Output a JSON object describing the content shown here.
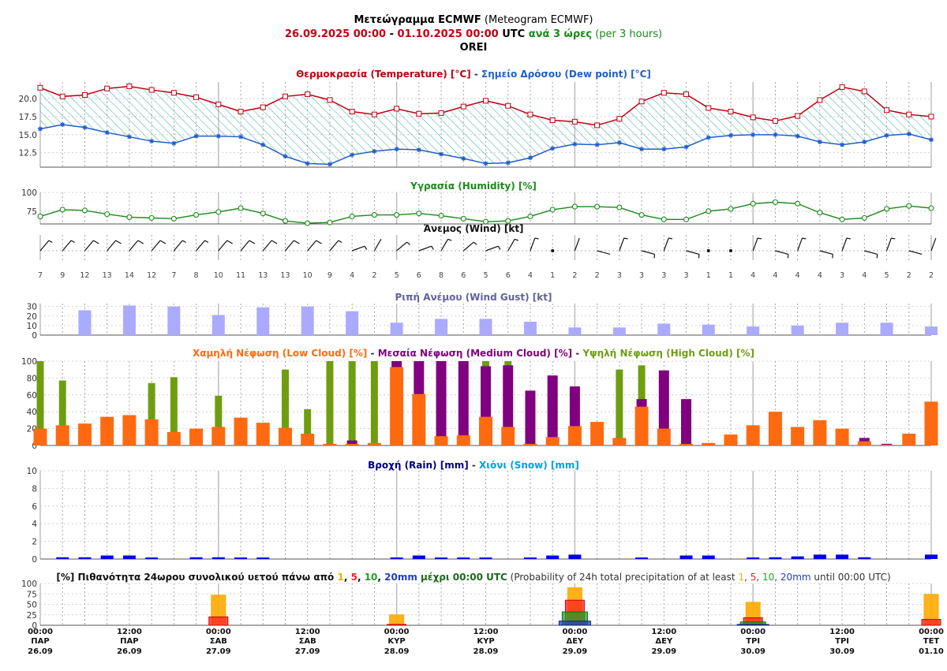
{
  "header": {
    "title_bold": "Μετεώγραμμα ECMWF",
    "title_en": " (Meteogram ECMWF)",
    "range_start": "26.09.2025 00:00",
    "range_sep": " - ",
    "range_end": "01.10.2025 00:00",
    "utc": " UTC ",
    "step_gr": "ανά 3 ώρες",
    "step_en": " (per 3 hours)",
    "location": "OREI"
  },
  "colors": {
    "temperature": "#c00010",
    "dewpoint": "#1f5fc8",
    "humidity": "#1a8a1a",
    "gust": "#aaaaff",
    "low_cloud": "#ff6a10",
    "medium_cloud": "#800080",
    "high_cloud": "#6e9e10",
    "rain": "#0000ee",
    "snow": "#00a0e0",
    "prob_1": "#ffaa00",
    "prob_5": "#ff2020",
    "prob_10": "#20a020",
    "prob_20": "#2040c0"
  },
  "chart_data": [
    {
      "type": "line",
      "title": "",
      "title_parts": [
        "Θερμοκρασία (Temperature) [°C]",
        " - ",
        "Σημείο Δρόσου (Dew point) [°C]"
      ],
      "ylim": [
        10.5,
        22.3
      ],
      "yticks": [
        "12.5",
        "15.0",
        "17.5",
        "20.0"
      ],
      "ytick_values": [
        12.5,
        15.0,
        17.5,
        20.0
      ],
      "series": [
        {
          "name": "Temperature",
          "values": [
            21.5,
            20.3,
            20.5,
            21.4,
            21.7,
            21.2,
            20.8,
            20.2,
            19.2,
            18.2,
            18.8,
            20.3,
            20.6,
            19.8,
            18.2,
            17.8,
            18.6,
            17.9,
            18.0,
            18.9,
            19.7,
            19.0,
            17.8,
            17.0,
            16.8,
            16.3,
            17.2,
            19.6,
            20.8,
            20.6,
            18.7,
            18.2,
            17.4,
            16.9,
            17.6,
            19.8,
            21.6,
            21.0,
            18.4,
            17.8,
            17.5
          ]
        },
        {
          "name": "Dew point",
          "values": [
            15.8,
            16.4,
            16.0,
            15.3,
            14.7,
            14.1,
            13.8,
            14.8,
            14.8,
            14.7,
            13.6,
            12.0,
            11.0,
            10.9,
            12.2,
            12.7,
            13.0,
            12.9,
            12.3,
            11.7,
            11.0,
            11.1,
            11.8,
            13.1,
            13.7,
            13.6,
            13.9,
            13.0,
            13.0,
            13.3,
            14.6,
            14.9,
            15.0,
            15.0,
            14.8,
            14.0,
            13.6,
            14.0,
            14.9,
            15.1,
            14.3
          ]
        }
      ]
    },
    {
      "type": "line",
      "title": "Υγρασία (Humidity) [%]",
      "ylim": [
        58,
        100
      ],
      "yticks": [
        "75",
        "100"
      ],
      "ytick_values": [
        75,
        100
      ],
      "series": [
        {
          "name": "Humidity",
          "values": [
            68,
            77,
            76,
            71,
            67,
            66,
            65,
            70,
            74,
            79,
            72,
            62,
            59,
            60,
            68,
            70,
            70,
            72,
            69,
            65,
            61,
            62,
            68,
            77,
            81,
            81,
            80,
            70,
            64,
            64,
            75,
            78,
            85,
            87,
            85,
            73,
            64,
            66,
            78,
            82,
            79
          ]
        }
      ]
    },
    {
      "type": "wind",
      "title": "Άνεμος (Wind) [kt]",
      "speeds": [
        "7",
        "9",
        "12",
        "13",
        "14",
        "12",
        "7",
        "8",
        "10",
        "11",
        "13",
        "13",
        "10",
        "9",
        "4",
        "2",
        "5",
        "6",
        "8",
        "6",
        "5",
        "6",
        "4",
        "1",
        "2",
        "2",
        "3",
        "3",
        "3",
        "3",
        "1",
        "1",
        "4",
        "4",
        "4",
        "4",
        "3",
        "4",
        "5",
        "2",
        "2"
      ]
    },
    {
      "type": "bar",
      "title": "Ριπή Ανέμου (Wind Gust) [kt]",
      "ylim": [
        0,
        33
      ],
      "yticks": [
        "0",
        "10",
        "20",
        "30"
      ],
      "ytick_values": [
        0,
        10,
        20,
        30
      ],
      "series": [
        {
          "name": "Wind Gust",
          "values": [
            26,
            31,
            30,
            21,
            29,
            30,
            25,
            13,
            17,
            17,
            14,
            8,
            8,
            12,
            11,
            9,
            10,
            13,
            13,
            9
          ]
        }
      ]
    },
    {
      "type": "bar",
      "title": "",
      "title_parts": [
        "Χαμηλή Νέφωση (Low Cloud) [%]",
        " - ",
        "Μεσαία Νέφωση (Medium Cloud) [%]",
        " - ",
        "Υψηλή Νέφωση (High Cloud) [%]"
      ],
      "ylim": [
        0,
        100
      ],
      "yticks": [
        "0",
        "20",
        "40",
        "60",
        "80",
        "100"
      ],
      "ytick_values": [
        0,
        20,
        40,
        60,
        80,
        100
      ],
      "series": [
        {
          "name": "Low Cloud",
          "values": [
            20,
            24,
            26,
            34,
            36,
            31,
            16,
            20,
            22,
            33,
            27,
            21,
            14,
            2,
            2,
            3,
            93,
            61,
            11,
            12,
            34,
            22,
            2,
            10,
            23,
            28,
            9,
            46,
            20,
            2,
            3,
            13,
            24,
            40,
            22,
            30,
            20,
            5,
            1,
            14,
            52
          ]
        },
        {
          "name": "Medium Cloud",
          "values": [
            0,
            0,
            0,
            0,
            0,
            0,
            0,
            0,
            0,
            0,
            0,
            0,
            0,
            0,
            6,
            0,
            100,
            100,
            100,
            100,
            94,
            95,
            65,
            83,
            70,
            0,
            0,
            55,
            89,
            55,
            0,
            0,
            0,
            0,
            0,
            0,
            0,
            9,
            2,
            0,
            0
          ]
        },
        {
          "name": "High Cloud",
          "values": [
            100,
            77,
            0,
            0,
            0,
            74,
            81,
            0,
            59,
            0,
            0,
            90,
            43,
            100,
            100,
            100,
            0,
            0,
            0,
            0,
            100,
            100,
            0,
            0,
            0,
            0,
            90,
            95,
            0,
            0,
            0,
            0,
            0,
            0,
            0,
            0,
            0,
            0,
            0,
            0,
            0
          ]
        }
      ]
    },
    {
      "type": "bar",
      "title": "",
      "title_parts": [
        "Βροχή (Rain) [mm]",
        " - ",
        "Χιόνι (Snow) [mm]"
      ],
      "ylim": [
        0,
        10
      ],
      "yticks": [
        "0",
        "2",
        "4",
        "6",
        "8",
        "10"
      ],
      "ytick_values": [
        0,
        2,
        4,
        6,
        8,
        10
      ],
      "series": [
        {
          "name": "Rain",
          "values": [
            0,
            0.2,
            0.2,
            0.4,
            0.4,
            0.1,
            0,
            0.2,
            0.2,
            0.1,
            0.1,
            0,
            0,
            0,
            0,
            0,
            0.1,
            0.4,
            0.1,
            0.1,
            0.1,
            0,
            0.1,
            0.4,
            0.5,
            0,
            0,
            0.1,
            0,
            0.4,
            0.4,
            0,
            0.1,
            0.2,
            0.3,
            0.5,
            0.5,
            0.2,
            0,
            0,
            0.5
          ]
        },
        {
          "name": "Snow",
          "values": [
            0,
            0,
            0,
            0,
            0,
            0,
            0,
            0,
            0,
            0,
            0,
            0,
            0,
            0,
            0,
            0,
            0,
            0,
            0,
            0,
            0,
            0,
            0,
            0,
            0,
            0,
            0,
            0,
            0,
            0,
            0,
            0,
            0,
            0,
            0,
            0,
            0,
            0,
            0,
            0,
            0
          ]
        }
      ]
    },
    {
      "type": "bar",
      "title": "",
      "title_parts": [
        "[%] Πιθανότητα 24ωρου συνολικού υετού πάνω από ",
        "1",
        ", ",
        "5",
        ", ",
        "10",
        ", ",
        "20mm",
        " μέχρι 00:00 UTC",
        " (Probability of 24h total precipitation of at least ",
        "1",
        ", ",
        "5",
        ", ",
        "10",
        ", ",
        "20mm",
        " until 00:00 UTC)"
      ],
      "ylim": [
        0,
        100
      ],
      "yticks": [
        "0",
        "25",
        "50",
        "75",
        "100"
      ],
      "ytick_values": [
        0,
        25,
        50,
        75,
        100
      ],
      "categories": [
        "27.09",
        "28.09",
        "29.09",
        "30.09",
        "01.10"
      ],
      "series": [
        {
          "name": "1mm",
          "values": [
            72,
            25,
            90,
            55,
            74
          ]
        },
        {
          "name": "5mm",
          "values": [
            20,
            2,
            60,
            18,
            14
          ]
        },
        {
          "name": "10mm",
          "values": [
            0,
            0,
            32,
            8,
            0
          ]
        },
        {
          "name": "20mm",
          "values": [
            0,
            0,
            10,
            2,
            0
          ]
        }
      ]
    }
  ],
  "xaxis": {
    "times": [
      "00:00",
      "12:00",
      "00:00",
      "12:00",
      "00:00",
      "12:00",
      "00:00",
      "12:00",
      "00:00",
      "12:00",
      "00:00"
    ],
    "days": [
      "ΠΑΡ",
      "ΠΑΡ",
      "ΣΑΒ",
      "ΣΑΒ",
      "ΚΥΡ",
      "ΚΥΡ",
      "ΔΕΥ",
      "ΔΕΥ",
      "ΤΡΙ",
      "ΤΡΙ",
      "ΤΕΤ"
    ],
    "dates": [
      "26.09",
      "26.09",
      "27.09",
      "27.09",
      "28.09",
      "28.09",
      "29.09",
      "29.09",
      "30.09",
      "30.09",
      "01.10"
    ]
  }
}
